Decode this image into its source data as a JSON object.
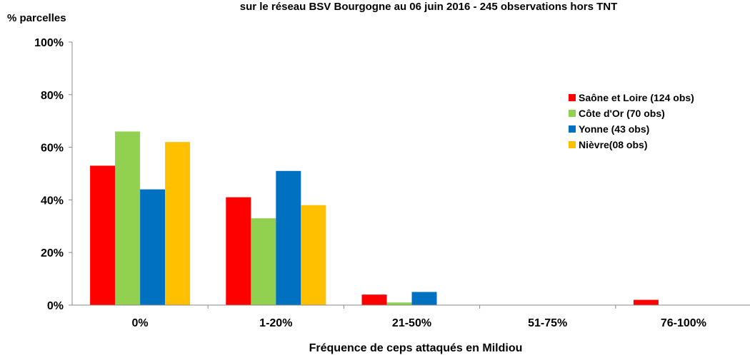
{
  "chart_data": {
    "type": "bar",
    "title": "sur le réseau BSV Bourgogne au 06 juin 2016 - 245 observations hors TNT",
    "xlabel": "Fréquence de ceps attaqués en Mildiou",
    "ylabel": "% parcelles",
    "ylim": [
      0,
      100
    ],
    "yticks": [
      "0%",
      "20%",
      "40%",
      "60%",
      "80%",
      "100%"
    ],
    "ytick_values": [
      0,
      20,
      40,
      60,
      80,
      100
    ],
    "grid": false,
    "legend_position": "right",
    "categories": [
      "0%",
      "1-20%",
      "21-50%",
      "51-75%",
      "76-100%"
    ],
    "series": [
      {
        "name": "Saône et Loire (124 obs)",
        "color": "#ff0000",
        "values": [
          53,
          41,
          4,
          0,
          2
        ]
      },
      {
        "name": "Côte d'Or (70 obs)",
        "color": "#92d050",
        "values": [
          66,
          33,
          1,
          0,
          0
        ]
      },
      {
        "name": "Yonne (43 obs)",
        "color": "#0070c0",
        "values": [
          44,
          51,
          5,
          0,
          0
        ]
      },
      {
        "name": "Nièvre(08 obs)",
        "color": "#ffc000",
        "values": [
          62,
          38,
          0,
          0,
          0
        ]
      }
    ]
  }
}
